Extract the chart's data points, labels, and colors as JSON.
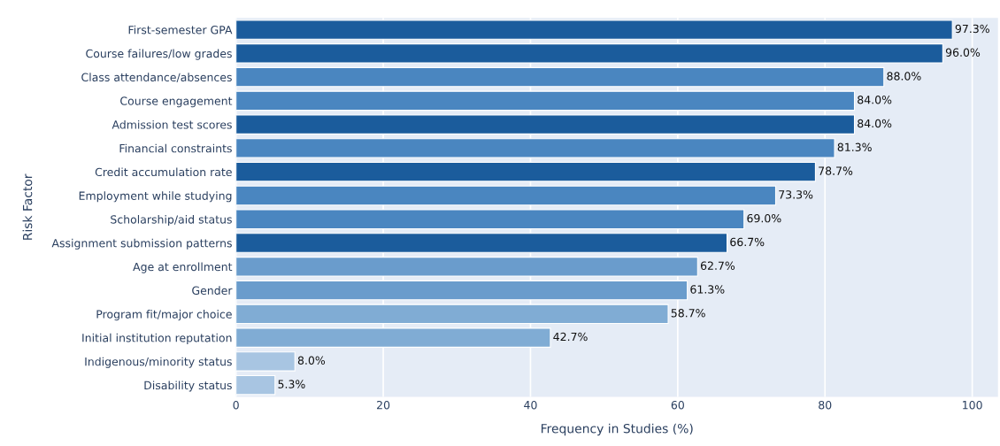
{
  "chart_data": {
    "type": "bar",
    "orientation": "horizontal",
    "xlabel": "Frequency in Studies (%)",
    "ylabel": "Risk Factor",
    "categories": [
      "First-semester GPA",
      "Course failures/low grades",
      "Class attendance/absences",
      "Course engagement",
      "Admission test scores",
      "Financial constraints",
      "Credit accumulation rate",
      "Employment while studying",
      "Scholarship/aid status",
      "Assignment submission patterns",
      "Age at enrollment",
      "Gender",
      "Program fit/major choice",
      "Initial institution reputation",
      "Indigenous/minority status",
      "Disability status"
    ],
    "values": [
      97.3,
      96.0,
      88.0,
      84.0,
      84.0,
      81.3,
      78.7,
      73.3,
      69.0,
      66.7,
      62.7,
      61.3,
      58.7,
      42.7,
      8.0,
      5.3
    ],
    "colors": [
      "#1b5c9c",
      "#1b5c9c",
      "#4a86c0",
      "#4a86c0",
      "#1b5c9c",
      "#4a86c0",
      "#1b5c9c",
      "#4a86c0",
      "#4a86c0",
      "#1b5c9c",
      "#6a9ccc",
      "#6a9ccc",
      "#80acd4",
      "#80acd4",
      "#a8c5e2",
      "#a8c5e2"
    ],
    "value_labels": [
      "97.3%",
      "96.0%",
      "88.0%",
      "84.0%",
      "84.0%",
      "81.3%",
      "78.7%",
      "73.3%",
      "69.0%",
      "66.7%",
      "62.7%",
      "61.3%",
      "58.7%",
      "42.7%",
      "8.0%",
      "5.3%"
    ],
    "xlim": [
      0,
      103.5
    ],
    "xticks": [
      0,
      20,
      40,
      60,
      80,
      100
    ],
    "grid": "x"
  }
}
